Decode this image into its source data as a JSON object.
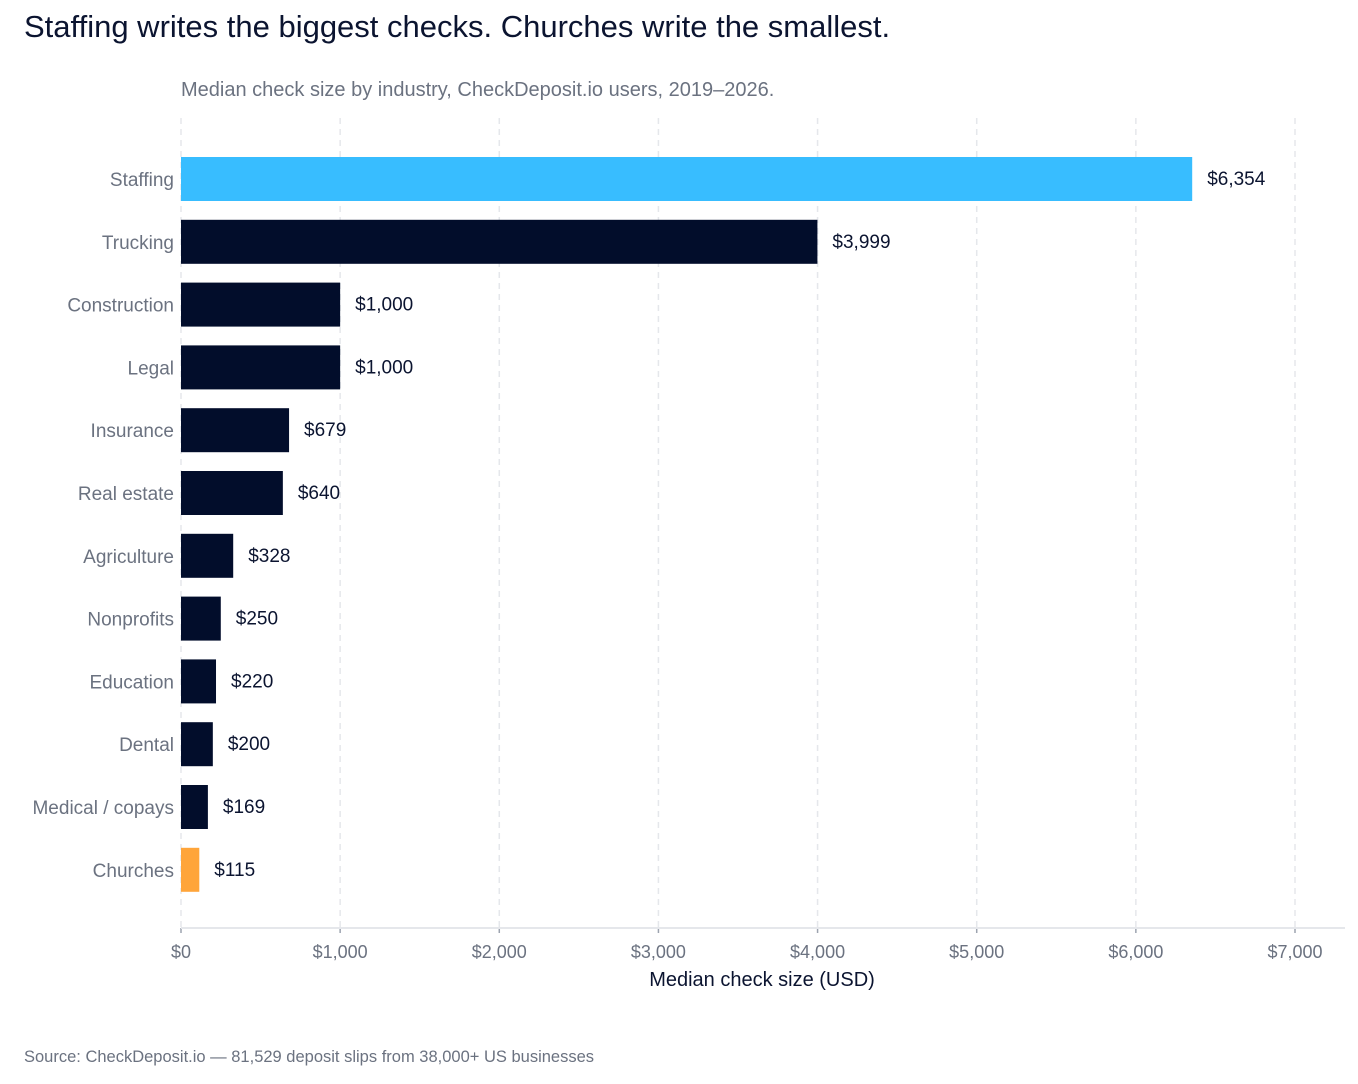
{
  "chart_data": {
    "type": "bar",
    "orientation": "horizontal",
    "title": "Staffing writes the biggest checks. Churches write the smallest.",
    "subtitle": "Median check size by industry, CheckDeposit.io users, 2019–2026.",
    "xlabel": "Median check size (USD)",
    "ylabel": "",
    "xlim": [
      0,
      7300
    ],
    "xticks": [
      0,
      1000,
      2000,
      3000,
      4000,
      5000,
      6000,
      7000
    ],
    "xtick_labels": [
      "$0",
      "$1,000",
      "$2,000",
      "$3,000",
      "$4,000",
      "$5,000",
      "$6,000",
      "$7,000"
    ],
    "grid": "vertical dashed",
    "categories": [
      "Staffing",
      "Trucking",
      "Construction",
      "Legal",
      "Insurance",
      "Real estate",
      "Agriculture",
      "Nonprofits",
      "Education",
      "Dental",
      "Medical / copays",
      "Churches"
    ],
    "values": [
      6354,
      3999,
      1000,
      1000,
      679,
      640,
      328,
      250,
      220,
      200,
      169,
      115
    ],
    "data_labels": [
      "$6,354",
      "$3,999",
      "$1,000",
      "$1,000",
      "$679",
      "$640",
      "$328",
      "$250",
      "$220",
      "$200",
      "$169",
      "$115"
    ],
    "colors": {
      "default": "#020d2b",
      "highest": "#38bdff",
      "lowest": "#ffa53a",
      "grid": "#e5e7eb",
      "axis_text": "#6b7280"
    },
    "source": "Source: CheckDeposit.io — 81,529 deposit slips from 38,000+ US businesses"
  }
}
